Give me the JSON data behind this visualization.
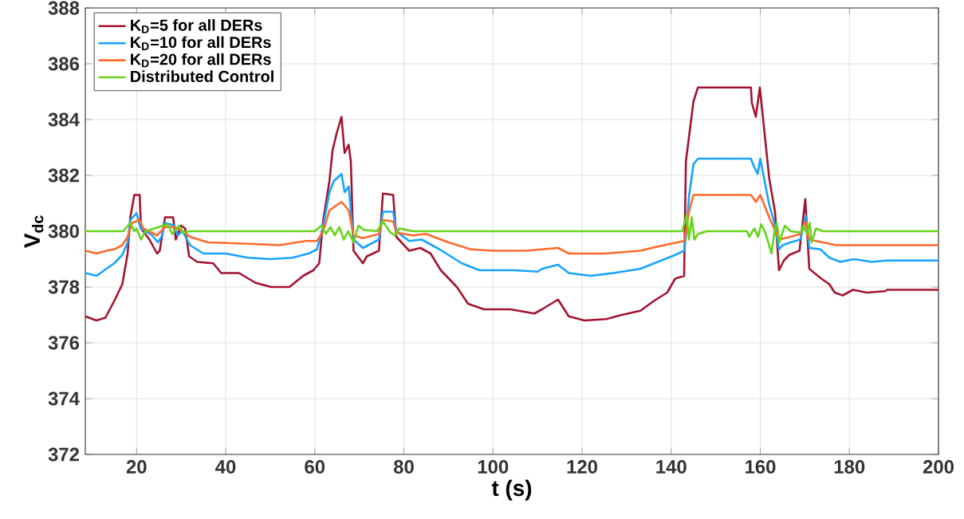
{
  "chart_data": {
    "type": "line",
    "xlabel": "t (s)",
    "ylabel": "V$_{dc}$",
    "xlim": [
      8.5,
      200
    ],
    "ylim": [
      372,
      388
    ],
    "xticks": [
      20,
      40,
      60,
      80,
      100,
      120,
      140,
      160,
      180,
      200
    ],
    "yticks": [
      372,
      374,
      376,
      378,
      380,
      382,
      384,
      386,
      388
    ],
    "grid": true,
    "legend": "top left",
    "series": [
      {
        "name": "K$_{D}$=5    for all DERs",
        "color": "#a2142f",
        "x": [
          8.5,
          11,
          13,
          15,
          16.8,
          18,
          18.6,
          19.5,
          20.7,
          21,
          22.9,
          24.6,
          25.2,
          26.4,
          28.2,
          28.8,
          30,
          30.9,
          31.8,
          33.6,
          37.2,
          39,
          43,
          46.7,
          50.2,
          54.3,
          57.4,
          59.7,
          61,
          61.9,
          63.3,
          64,
          64.9,
          66,
          66.7,
          67.6,
          68.1,
          68.7,
          70.8,
          71.7,
          74.4,
          75.3,
          77.6,
          78.3,
          81.2,
          83.7,
          86,
          88.3,
          91.9,
          94.4,
          98,
          103.9,
          109.3,
          111,
          114.6,
          117,
          120.5,
          125.4,
          128.9,
          133.1,
          136.1,
          139.1,
          140.9,
          142.9,
          143.3,
          145,
          146,
          157.9,
          158.1,
          159,
          159.9,
          162,
          163.3,
          164.2,
          165.3,
          166.5,
          168.8,
          170.1,
          171,
          173.7,
          175.5,
          176.7,
          178.5,
          180.8,
          183.9,
          188,
          188.5,
          200
        ],
        "values": [
          376.95,
          376.8,
          376.9,
          377.5,
          378.1,
          379.2,
          380.5,
          381.3,
          381.3,
          380.1,
          379.7,
          379.2,
          379.3,
          380.5,
          380.5,
          379.7,
          380.2,
          380.1,
          379.1,
          378.9,
          378.85,
          378.5,
          378.5,
          378.15,
          378.0,
          378.0,
          378.4,
          378.6,
          378.85,
          380.4,
          381.8,
          382.9,
          383.5,
          384.1,
          382.8,
          383.1,
          382.5,
          379.3,
          378.85,
          379.1,
          379.3,
          381.35,
          381.3,
          379.8,
          379.3,
          379.4,
          379.2,
          378.6,
          378.0,
          377.4,
          377.2,
          377.2,
          377.05,
          377.2,
          377.55,
          376.95,
          376.8,
          376.85,
          377.0,
          377.15,
          377.5,
          377.8,
          378.3,
          378.4,
          382.5,
          384.65,
          385.15,
          385.15,
          384.6,
          384.1,
          385.15,
          381.9,
          380.7,
          378.6,
          378.95,
          379.15,
          379.3,
          381.15,
          378.65,
          378.3,
          378.1,
          377.8,
          377.7,
          377.9,
          377.8,
          377.85,
          377.9,
          377.9
        ]
      },
      {
        "name": "K$_{D}$=10   for all DERs",
        "color": "#16a4ff",
        "x": [
          8.5,
          11,
          13.2,
          15,
          16.8,
          18,
          18.6,
          20,
          20.9,
          23.5,
          24.8,
          25.6,
          26.4,
          28.5,
          29.2,
          30.3,
          32,
          35,
          40,
          45,
          50,
          55,
          58.6,
          60.5,
          61.9,
          63.3,
          64.3,
          66,
          66.7,
          67.6,
          68.7,
          70.8,
          74.4,
          75.3,
          77.6,
          78.3,
          81.2,
          84,
          88,
          93,
          97,
          105,
          110,
          111,
          114.6,
          117,
          122,
          127,
          133,
          137,
          140.9,
          142.9,
          143.3,
          144,
          145,
          146,
          157.9,
          158.5,
          159.4,
          160,
          162,
          163,
          164.2,
          165,
          166.8,
          169,
          170.2,
          171,
          173.5,
          175.5,
          178,
          181,
          185,
          188.5,
          200
        ],
        "values": [
          378.5,
          378.4,
          378.65,
          378.85,
          379.15,
          379.6,
          380.4,
          380.65,
          380.1,
          379.85,
          379.6,
          379.8,
          380.3,
          380.2,
          379.85,
          380.0,
          379.5,
          379.2,
          379.2,
          379.05,
          379.0,
          379.05,
          379.2,
          379.35,
          380.2,
          381.4,
          381.8,
          382.05,
          381.4,
          381.6,
          379.7,
          379.4,
          379.7,
          380.7,
          380.7,
          380.0,
          379.65,
          379.7,
          379.35,
          378.85,
          378.6,
          378.6,
          378.55,
          378.65,
          378.8,
          378.5,
          378.4,
          378.5,
          378.65,
          378.9,
          379.15,
          379.3,
          379.8,
          381.25,
          382.4,
          382.6,
          382.6,
          382.35,
          382.05,
          382.6,
          380.95,
          380.4,
          379.35,
          379.5,
          379.6,
          379.7,
          380.55,
          379.4,
          379.35,
          379.05,
          378.9,
          379.0,
          378.9,
          378.95,
          378.95
        ]
      },
      {
        "name": "K$_{D}$=20   for all DERs",
        "color": "#ff6a2a",
        "x": [
          8.5,
          11,
          13.2,
          15,
          16.8,
          18,
          19,
          20.7,
          21.5,
          24.6,
          26.4,
          28.2,
          30,
          32,
          36,
          45,
          52,
          58,
          60.5,
          61.9,
          63.3,
          66,
          67.6,
          68.7,
          70.8,
          74.4,
          75.3,
          77.6,
          78.3,
          82,
          85,
          90,
          95,
          100,
          107.5,
          114.6,
          117,
          125,
          133,
          137,
          142.9,
          143.3,
          144,
          145,
          157.9,
          159,
          160,
          162,
          164.2,
          166.8,
          169,
          170.2,
          171,
          174,
          177,
          200
        ],
        "values": [
          379.3,
          379.2,
          379.3,
          379.35,
          379.5,
          379.8,
          380.3,
          380.4,
          380.1,
          379.85,
          380.15,
          380.15,
          380.05,
          379.8,
          379.6,
          379.55,
          379.5,
          379.65,
          379.65,
          380.0,
          380.75,
          381.05,
          380.75,
          379.85,
          379.75,
          379.9,
          380.4,
          380.35,
          379.95,
          379.85,
          379.9,
          379.6,
          379.35,
          379.3,
          379.3,
          379.4,
          379.2,
          379.2,
          379.3,
          379.45,
          379.65,
          379.95,
          380.7,
          381.3,
          381.3,
          381.05,
          381.3,
          380.5,
          379.7,
          379.8,
          379.9,
          380.35,
          379.7,
          379.6,
          379.5,
          379.5
        ]
      },
      {
        "name": "Distributed Control",
        "color": "#66d41a",
        "x": [
          8.5,
          17,
          18.6,
          19.5,
          20,
          21,
          22,
          27,
          28,
          29.5,
          30.5,
          32,
          60,
          61.5,
          62.5,
          63.5,
          64.5,
          65.5,
          66.5,
          67.5,
          68.7,
          69.8,
          71,
          74,
          75.3,
          77,
          78,
          79,
          82,
          142.5,
          143.5,
          144,
          144.6,
          145.2,
          146,
          148,
          157,
          157.5,
          158.7,
          159.5,
          160.2,
          161,
          161.8,
          162.5,
          163.2,
          163.7,
          164.3,
          165.5,
          166.8,
          169,
          169.7,
          170.5,
          171.1,
          171.5,
          172.5,
          174,
          200
        ],
        "values": [
          380.0,
          380.0,
          380.3,
          380.0,
          380.1,
          379.7,
          380.0,
          380.25,
          379.9,
          380.2,
          379.95,
          380.0,
          380.0,
          380.2,
          379.9,
          380.15,
          379.85,
          380.15,
          379.7,
          380.0,
          379.6,
          380.2,
          380.05,
          380.0,
          380.35,
          379.95,
          379.85,
          380.1,
          380.0,
          380.0,
          380.6,
          379.7,
          380.5,
          379.7,
          379.9,
          380.0,
          380.0,
          379.8,
          380.1,
          379.8,
          380.25,
          380.0,
          379.6,
          379.2,
          380.0,
          380.3,
          379.6,
          380.2,
          380.0,
          379.95,
          380.2,
          379.9,
          380.3,
          379.6,
          380.1,
          380.0,
          380.0
        ]
      }
    ]
  }
}
